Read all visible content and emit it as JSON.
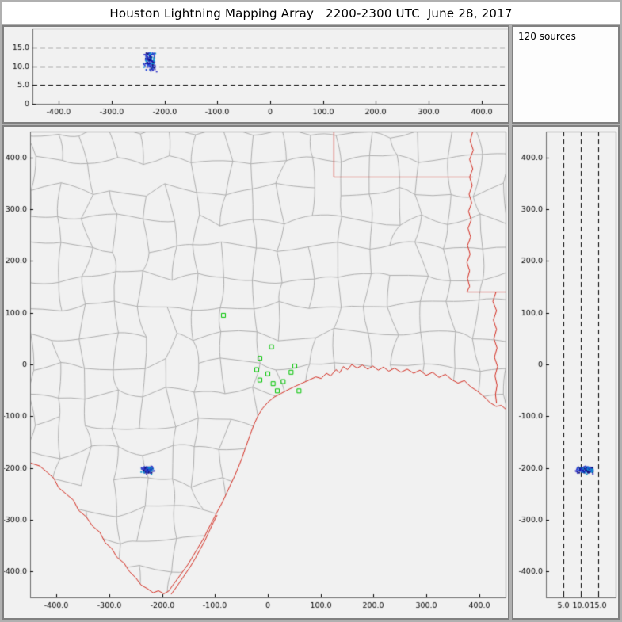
{
  "title": "Houston Lightning Mapping Array   2200-2300 UTC  June 28, 2017",
  "sources_label": "120 sources",
  "colors": {
    "outer_bg": "#b0b0b0",
    "titlebar_bg": "#ffffff",
    "frame_border": "#808080",
    "panel_bg": "#f1f1f1",
    "sources_panel_bg": "#fdfdfd",
    "plot_border": "#6e6e6e",
    "county_line": "#aeaeae",
    "boundary_red": "#d42a1e",
    "station_green": "#00c400",
    "dashed_line": "#000000",
    "tick_text": "#000000",
    "source_palette": [
      "#1414b4",
      "#2850dc",
      "#0a9ad2",
      "#141478",
      "#3c3cc8"
    ]
  },
  "chart_data": [
    {
      "id": "ew_altitude",
      "type": "scatter",
      "panel": "top",
      "title": "",
      "xlabel": "",
      "ylabel": "",
      "xlim": [
        -450,
        450
      ],
      "ylim": [
        0,
        20
      ],
      "x_tick_values": [
        -400,
        -300,
        -200,
        -100,
        0,
        100,
        200,
        300,
        400
      ],
      "x_tick_labels": [
        "-400.0",
        "-300.0",
        "-200.0",
        "-100.0",
        "0",
        "100.0",
        "200.0",
        "300.0",
        "400.0"
      ],
      "y_tick_values": [
        0,
        5,
        10,
        15
      ],
      "y_tick_labels": [
        "0",
        "5.0",
        "10.0",
        "15.0"
      ],
      "dashed_y": [
        5,
        10,
        15
      ],
      "series": [
        {
          "name": "lightning-sources",
          "data_ref": "lightning_sources",
          "x_field": "x_km",
          "y_field": "alt_km"
        }
      ]
    },
    {
      "id": "plan_view",
      "type": "scatter",
      "panel": "main",
      "title": "",
      "xlabel": "",
      "ylabel": "",
      "xlim": [
        -450,
        450
      ],
      "ylim": [
        -450,
        450
      ],
      "x_tick_values": [
        -400,
        -300,
        -200,
        -100,
        0,
        100,
        200,
        300,
        400
      ],
      "x_tick_labels": [
        "-400.0",
        "-300.0",
        "-200.0",
        "-100.0",
        "0",
        "100.0",
        "200.0",
        "300.0",
        "400.0"
      ],
      "y_tick_values": [
        400,
        300,
        200,
        100,
        0,
        -100,
        -200,
        -300,
        -400
      ],
      "y_tick_labels": [
        "400.0",
        "300.0",
        "200.0",
        "100.0",
        "0",
        "-100.0",
        "-200.0",
        "-300.0",
        "-400.0"
      ],
      "series": [
        {
          "name": "lightning-sources",
          "data_ref": "lightning_sources",
          "x_field": "x_km",
          "y_field": "y_km"
        },
        {
          "name": "lma-stations",
          "data_ref": "stations_km",
          "marker": "open-green-square"
        },
        {
          "name": "county-and-state-boundaries",
          "data_ref": "map_boundaries_km"
        }
      ]
    },
    {
      "id": "ns_altitude",
      "type": "scatter",
      "panel": "right",
      "title": "",
      "xlabel": "",
      "ylabel": "",
      "xlim": [
        0,
        20
      ],
      "ylim": [
        -450,
        450
      ],
      "x_tick_values": [
        5,
        10,
        15
      ],
      "x_tick_labels": [
        "5.0",
        "10.0",
        "15.0"
      ],
      "y_tick_values": [
        400,
        300,
        200,
        100,
        0,
        -100,
        -200,
        -300,
        -400
      ],
      "y_tick_labels": [
        "400.0",
        "300.0",
        "200.0",
        "100.0",
        "0",
        "-100.0",
        "-200.0",
        "-300.0",
        "-400.0"
      ],
      "dashed_x": [
        5,
        10,
        15
      ],
      "series": [
        {
          "name": "lightning-sources",
          "data_ref": "lightning_sources",
          "x_field": "alt_km",
          "y_field": "y_km"
        }
      ]
    }
  ],
  "lightning_sources": {
    "count": 120,
    "center_x_km": -228,
    "center_y_km": -204,
    "x_spread_km": 16,
    "y_spread_km": 9,
    "alt_min_km": 8.5,
    "alt_max_km": 13.5
  },
  "stations_km": [
    [
      -84,
      95
    ],
    [
      7,
      34
    ],
    [
      -15,
      12
    ],
    [
      -21,
      -10
    ],
    [
      0,
      -18
    ],
    [
      -15,
      -30
    ],
    [
      10,
      -37
    ],
    [
      29,
      -33
    ],
    [
      18,
      -51
    ],
    [
      51,
      -3
    ],
    [
      44,
      -15
    ],
    [
      59,
      -51
    ]
  ],
  "map_boundaries_km": {
    "rio_grande": [
      [
        -450,
        -190
      ],
      [
        -432,
        -196
      ],
      [
        -418,
        -208
      ],
      [
        -405,
        -220
      ],
      [
        -396,
        -238
      ],
      [
        -382,
        -250
      ],
      [
        -368,
        -262
      ],
      [
        -358,
        -282
      ],
      [
        -344,
        -294
      ],
      [
        -332,
        -312
      ],
      [
        -318,
        -324
      ],
      [
        -308,
        -344
      ],
      [
        -295,
        -356
      ],
      [
        -286,
        -372
      ],
      [
        -272,
        -384
      ],
      [
        -262,
        -400
      ],
      [
        -250,
        -412
      ],
      [
        -240,
        -426
      ],
      [
        -228,
        -433
      ],
      [
        -217,
        -441
      ],
      [
        -207,
        -437
      ],
      [
        -197,
        -443
      ],
      [
        -188,
        -438
      ]
    ],
    "coastline": [
      [
        -188,
        -438
      ],
      [
        -176,
        -421
      ],
      [
        -163,
        -403
      ],
      [
        -151,
        -386
      ],
      [
        -141,
        -369
      ],
      [
        -131,
        -352
      ],
      [
        -121,
        -335
      ],
      [
        -113,
        -318
      ],
      [
        -104,
        -301
      ],
      [
        -96,
        -285
      ],
      [
        -87,
        -268
      ],
      [
        -79,
        -251
      ],
      [
        -71,
        -233
      ],
      [
        -63,
        -216
      ],
      [
        -56,
        -199
      ],
      [
        -49,
        -181
      ],
      [
        -43,
        -163
      ],
      [
        -37,
        -146
      ],
      [
        -31,
        -129
      ],
      [
        -25,
        -113
      ],
      [
        -18,
        -98
      ],
      [
        -10,
        -85
      ],
      [
        0,
        -73
      ],
      [
        12,
        -63
      ],
      [
        25,
        -56
      ],
      [
        38,
        -49
      ],
      [
        52,
        -42
      ],
      [
        65,
        -36
      ],
      [
        78,
        -30
      ],
      [
        91,
        -24
      ],
      [
        101,
        -27
      ],
      [
        111,
        -17
      ],
      [
        119,
        -22
      ],
      [
        129,
        -10
      ],
      [
        136,
        -16
      ],
      [
        143,
        -4
      ],
      [
        151,
        -10
      ],
      [
        159,
        0
      ],
      [
        169,
        -7
      ],
      [
        179,
        -1
      ],
      [
        189,
        -9
      ],
      [
        199,
        -3
      ],
      [
        209,
        -11
      ],
      [
        219,
        -5
      ],
      [
        229,
        -13
      ],
      [
        240,
        -7
      ],
      [
        252,
        -15
      ],
      [
        264,
        -9
      ],
      [
        276,
        -17
      ],
      [
        288,
        -11
      ],
      [
        300,
        -21
      ],
      [
        312,
        -15
      ],
      [
        324,
        -25
      ],
      [
        336,
        -19
      ],
      [
        348,
        -29
      ],
      [
        360,
        -36
      ],
      [
        372,
        -31
      ],
      [
        384,
        -43
      ],
      [
        396,
        -51
      ],
      [
        408,
        -61
      ],
      [
        420,
        -73
      ],
      [
        432,
        -81
      ],
      [
        442,
        -79
      ],
      [
        450,
        -86
      ]
    ],
    "barrier_island": [
      [
        -183,
        -444
      ],
      [
        -171,
        -427
      ],
      [
        -159,
        -409
      ],
      [
        -147,
        -391
      ],
      [
        -137,
        -374
      ],
      [
        -128,
        -357
      ],
      [
        -119,
        -340
      ],
      [
        -111,
        -322
      ],
      [
        -103,
        -305
      ],
      [
        -96,
        -291
      ]
    ],
    "tx_ok_border": [
      [
        125,
        450
      ],
      [
        125,
        362
      ],
      [
        388,
        362
      ]
    ],
    "tx_ar_border": [
      [
        388,
        450
      ],
      [
        383,
        432
      ],
      [
        389,
        414
      ],
      [
        382,
        396
      ],
      [
        388,
        378
      ],
      [
        382,
        362
      ],
      [
        387,
        346
      ],
      [
        381,
        329
      ],
      [
        386,
        312
      ],
      [
        380,
        296
      ],
      [
        385,
        279
      ],
      [
        379,
        263
      ],
      [
        384,
        246
      ],
      [
        378,
        230
      ],
      [
        383,
        213
      ],
      [
        377,
        197
      ],
      [
        382,
        181
      ],
      [
        378,
        166
      ],
      [
        382,
        151
      ],
      [
        377,
        140
      ]
    ],
    "la_ar_border": [
      [
        377,
        140
      ],
      [
        450,
        140
      ]
    ],
    "ms_river": [
      [
        432,
        140
      ],
      [
        426,
        122
      ],
      [
        433,
        104
      ],
      [
        427,
        86
      ],
      [
        433,
        68
      ],
      [
        428,
        50
      ],
      [
        434,
        32
      ],
      [
        429,
        14
      ],
      [
        435,
        -4
      ],
      [
        430,
        -22
      ],
      [
        434,
        -40
      ],
      [
        431,
        -58
      ],
      [
        433,
        -75
      ]
    ]
  }
}
